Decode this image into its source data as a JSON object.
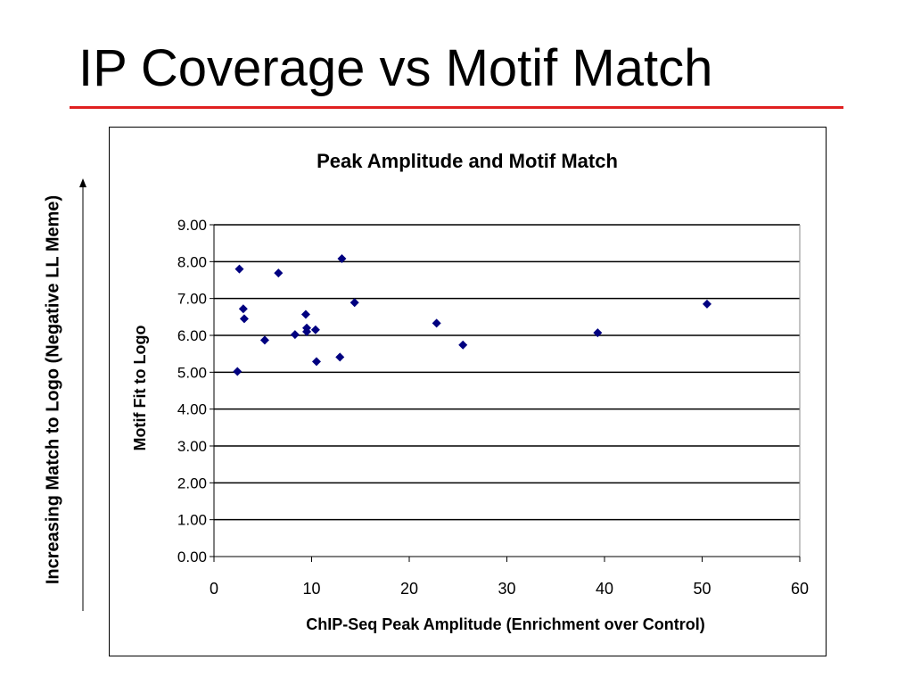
{
  "slide": {
    "title": "IP Coverage vs Motif Match",
    "side_label": "Increasing Match to Logo (Negative LL Meme)"
  },
  "colors": {
    "title_rule": "#e02020",
    "marker": "#000080"
  },
  "chart_data": {
    "type": "scatter",
    "title": "Peak Amplitude and Motif Match",
    "xlabel": "ChIP-Seq Peak Amplitude (Enrichment over Control)",
    "ylabel": "Motif Fit to Logo",
    "xlim": [
      0,
      60
    ],
    "ylim": [
      0,
      9
    ],
    "xticks": [
      "0",
      "10",
      "20",
      "30",
      "40",
      "50",
      "60"
    ],
    "yticks": [
      "0.00",
      "1.00",
      "2.00",
      "3.00",
      "4.00",
      "5.00",
      "6.00",
      "7.00",
      "8.00",
      "9.00"
    ],
    "grid": "horizontal",
    "legend": "none",
    "points": [
      [
        2.6,
        7.8
      ],
      [
        6.6,
        7.69
      ],
      [
        13.1,
        8.08
      ],
      [
        14.4,
        6.89
      ],
      [
        3.0,
        6.72
      ],
      [
        3.1,
        6.45
      ],
      [
        9.4,
        6.57
      ],
      [
        9.5,
        6.2
      ],
      [
        9.5,
        6.1
      ],
      [
        10.4,
        6.15
      ],
      [
        8.3,
        6.02
      ],
      [
        5.2,
        5.87
      ],
      [
        22.8,
        6.33
      ],
      [
        25.5,
        5.74
      ],
      [
        2.4,
        5.02
      ],
      [
        10.5,
        5.29
      ],
      [
        12.9,
        5.41
      ],
      [
        39.3,
        6.07
      ],
      [
        50.5,
        6.85
      ]
    ]
  }
}
